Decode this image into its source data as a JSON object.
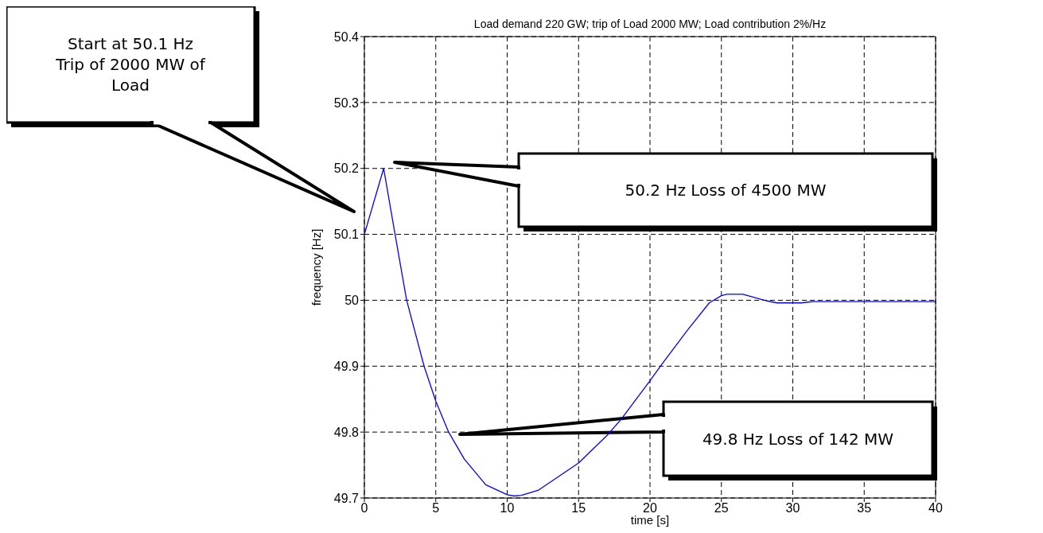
{
  "chart_data": {
    "type": "line",
    "title": "Load demand 220 GW; trip of Load 2000 MW; Load contribution 2%/Hz",
    "xlabel": "time [s]",
    "ylabel": "frequency [Hz]",
    "x": [
      0,
      1.35,
      2.15,
      2.96,
      4.18,
      5.0,
      5.9,
      7.0,
      8.5,
      10.0,
      10.5,
      11.0,
      12.2,
      15,
      17,
      18,
      20,
      20.8,
      22.6,
      24.15,
      25,
      25.4,
      26.5,
      28.2,
      28.9,
      30.6,
      31.4,
      40
    ],
    "series": [
      {
        "color": "#0000ff",
        "values": [
          50.1,
          50.2,
          50.1,
          50.0,
          49.9,
          49.847,
          49.8,
          49.759,
          49.72,
          49.705,
          49.703,
          49.704,
          49.712,
          49.753,
          49.795,
          49.82,
          49.878,
          49.902,
          49.954,
          49.996,
          50.007,
          50.009,
          50.009,
          49.999,
          49.996,
          49.996,
          49.998,
          49.998
        ]
      }
    ],
    "xlim": [
      0,
      40
    ],
    "xticks": [
      0,
      5,
      10,
      15,
      20,
      25,
      30,
      35,
      40
    ],
    "ylim": [
      49.7,
      50.4
    ],
    "yticks": [
      49.7,
      49.8,
      49.9,
      {
        "value": 50,
        "label": "50"
      },
      50.1,
      50.2,
      50.3,
      50.4
    ],
    "grid": true,
    "marker": "none",
    "line_style": "solid",
    "annotations": [
      "Start at 50.1 Hz\nTrip of 2000 MW of\nLoad",
      "50.2 Hz Loss of 4500 MW",
      "49.8  Hz Loss of 142 MW"
    ]
  }
}
